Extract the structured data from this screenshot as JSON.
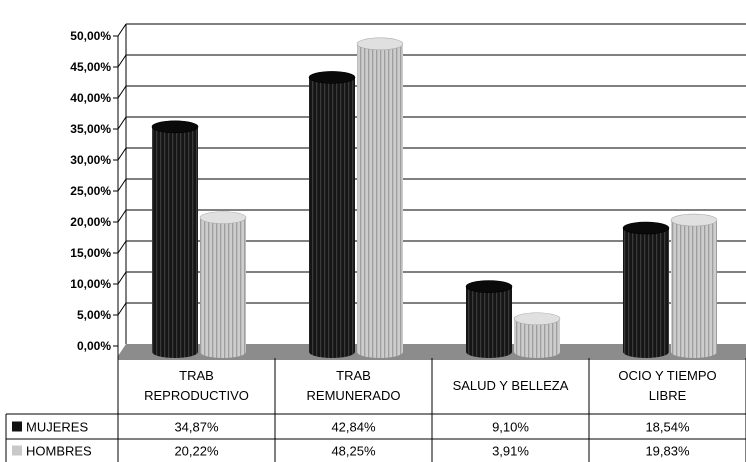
{
  "chart_data": {
    "type": "bar",
    "title": "",
    "xlabel": "",
    "ylabel": "",
    "categories": [
      [
        "TRAB",
        "REPRODUCTIVO"
      ],
      [
        "TRAB",
        "REMUNERADO"
      ],
      [
        "SALUD Y BELLEZA"
      ],
      [
        "OCIO Y TIEMPO",
        "LIBRE"
      ]
    ],
    "series": [
      {
        "name": "MUJERES",
        "color": "#111111",
        "values": [
          34.87,
          42.84,
          9.1,
          18.54
        ],
        "labels": [
          "34,87%",
          "42,84%",
          "9,10%",
          "18,54%"
        ]
      },
      {
        "name": "HOMBRES",
        "color": "#c8c8c8",
        "values": [
          20.22,
          48.25,
          3.91,
          19.83
        ],
        "labels": [
          "20,22%",
          "48,25%",
          "3,91%",
          "19,83%"
        ]
      }
    ],
    "ylim": [
      0,
      50
    ],
    "yticks": [
      "0,00%",
      "5,00%",
      "10,00%",
      "15,00%",
      "20,00%",
      "25,00%",
      "30,00%",
      "35,00%",
      "40,00%",
      "45,00%",
      "50,00%"
    ],
    "grid": true,
    "legend": "data-table"
  }
}
